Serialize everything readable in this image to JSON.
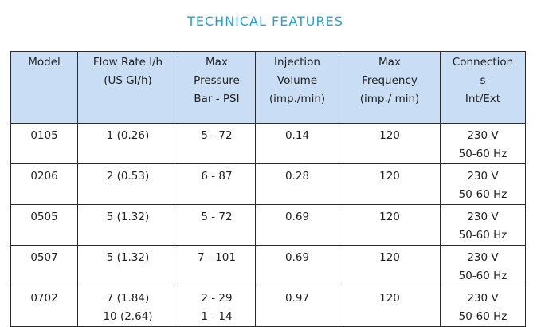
{
  "title": "TECHNICAL FEATURES",
  "table": {
    "headers": [
      "Model",
      "Flow Rate l/h\n(US Gl/h)",
      "Max\nPressure\nBar - PSI",
      "Injection\nVolume\n(imp./min)",
      "Max\nFrequency\n(imp./ min)",
      "Connection\ns\nInt/Ext"
    ],
    "rows": [
      [
        "0105",
        "1 (0.26)",
        "5 - 72",
        "0.14",
        "120",
        "230 V\n50-60 Hz"
      ],
      [
        "0206",
        "2 (0.53)",
        "6 - 87",
        "0.28",
        "120",
        "230 V\n50-60 Hz"
      ],
      [
        "0505",
        "5 (1.32)",
        "5 - 72",
        "0.69",
        "120",
        "230 V\n50-60 Hz"
      ],
      [
        "0507",
        "5 (1.32)",
        "7 - 101",
        "0.69",
        "120",
        "230 V\n50-60 Hz"
      ],
      [
        "0702",
        "7 (1.84)\n10 (2.64)",
        "2 - 29\n1 - 14",
        "0.97",
        "120",
        "230 V\n50-60 Hz"
      ]
    ]
  },
  "colors": {
    "title": "#1ea4d6",
    "header_bg": "#c9ddf4",
    "border": "#2a2a2a"
  }
}
